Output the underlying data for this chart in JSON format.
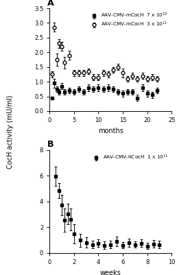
{
  "panel_A": {
    "series1": {
      "label": "AAV-CMV-mCocH  7 x 10$^{10}$",
      "marker": "s",
      "color": "black",
      "x": [
        0.5,
        1,
        1.5,
        2,
        2.5,
        3,
        4,
        5,
        6,
        7,
        8,
        9,
        10,
        11,
        12,
        13,
        14,
        15,
        16,
        17,
        18,
        19,
        20,
        21,
        22
      ],
      "y": [
        0.45,
        0.95,
        0.75,
        0.65,
        0.85,
        0.65,
        0.7,
        0.65,
        0.75,
        0.65,
        0.8,
        0.75,
        0.8,
        0.75,
        0.8,
        0.75,
        0.65,
        0.6,
        0.65,
        0.65,
        0.45,
        0.8,
        0.6,
        0.55,
        0.7
      ],
      "yerr": [
        0.05,
        0.15,
        0.1,
        0.1,
        0.1,
        0.1,
        0.1,
        0.1,
        0.1,
        0.1,
        0.12,
        0.1,
        0.12,
        0.1,
        0.12,
        0.1,
        0.1,
        0.1,
        0.1,
        0.1,
        0.1,
        0.12,
        0.1,
        0.1,
        0.1
      ]
    },
    "series2": {
      "label": "AAV-CMV-mCocH  3 x 10$^{11}$",
      "marker": "o",
      "color": "black",
      "x": [
        0.5,
        1,
        1.5,
        2,
        2.5,
        3,
        4,
        5,
        6,
        7,
        8,
        9,
        10,
        11,
        12,
        13,
        14,
        15,
        16,
        17,
        18,
        19,
        20,
        21,
        22
      ],
      "y": [
        1.25,
        2.85,
        1.75,
        2.3,
        2.2,
        1.65,
        1.9,
        1.3,
        1.3,
        1.3,
        1.35,
        1.15,
        1.15,
        1.3,
        1.25,
        1.4,
        1.5,
        1.3,
        1.1,
        1.2,
        1.1,
        1.2,
        1.1,
        1.15,
        1.1
      ],
      "yerr": [
        0.1,
        0.15,
        0.2,
        0.15,
        0.15,
        0.2,
        0.15,
        0.1,
        0.1,
        0.1,
        0.1,
        0.1,
        0.1,
        0.1,
        0.1,
        0.1,
        0.1,
        0.15,
        0.1,
        0.1,
        0.1,
        0.1,
        0.1,
        0.1,
        0.1
      ]
    },
    "xlabel": "months",
    "xlim": [
      0,
      25
    ],
    "ylim": [
      0,
      3.5
    ],
    "yticks": [
      0.0,
      0.5,
      1.0,
      1.5,
      2.0,
      2.5,
      3.0,
      3.5
    ],
    "xticks": [
      0,
      5,
      10,
      15,
      20,
      25
    ],
    "panel_label": "A"
  },
  "panel_B": {
    "series1": {
      "label": "AAV-CMV-hCocH  1 x 10$^{11}$",
      "marker": "s",
      "color": "black",
      "x": [
        0.5,
        0.75,
        1.0,
        1.25,
        1.5,
        1.75,
        2.0,
        2.5,
        3.0,
        3.5,
        4.0,
        4.5,
        5.0,
        5.5,
        6.0,
        6.5,
        7.0,
        7.5,
        8.0,
        8.5,
        9.0
      ],
      "y": [
        5.95,
        4.85,
        3.75,
        2.55,
        3.05,
        2.6,
        1.5,
        1.0,
        0.8,
        0.65,
        0.75,
        0.6,
        0.65,
        0.9,
        0.6,
        0.8,
        0.65,
        0.75,
        0.55,
        0.7,
        0.65
      ],
      "yerr": [
        0.75,
        0.6,
        0.8,
        0.9,
        0.8,
        0.85,
        0.75,
        0.5,
        0.4,
        0.3,
        0.3,
        0.3,
        0.3,
        0.35,
        0.25,
        0.3,
        0.25,
        0.3,
        0.25,
        0.3,
        0.3
      ]
    },
    "xlabel": "weeks",
    "xlim": [
      0,
      10
    ],
    "ylim": [
      0,
      8
    ],
    "yticks": [
      0,
      2,
      4,
      6,
      8
    ],
    "xticks": [
      0,
      2,
      4,
      6,
      8,
      10
    ],
    "panel_label": "B"
  },
  "ylabel": "CocH activity (mU/ml)",
  "background_color": "white",
  "font_size": 7,
  "tick_size": 6
}
